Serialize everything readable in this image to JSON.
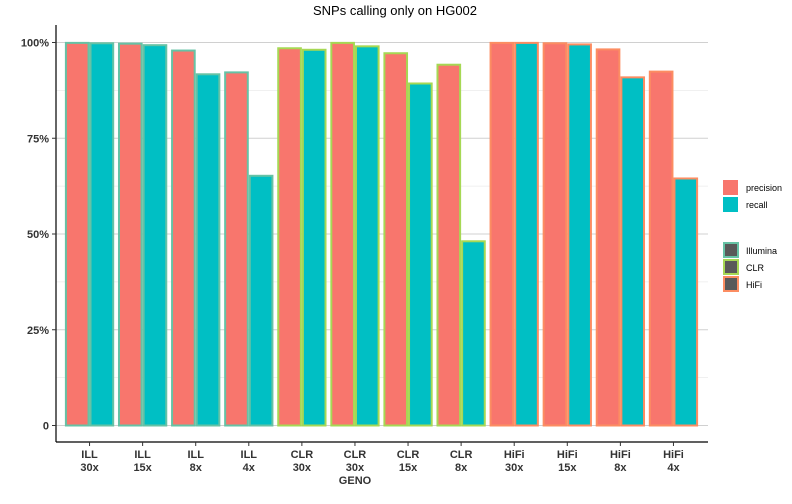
{
  "chart_data": {
    "type": "bar",
    "title": "SNPs calling only on HG002",
    "xlabel": "GENO",
    "ylabel": "",
    "ylim": [
      0,
      1
    ],
    "yticks": [
      0,
      0.25,
      0.5,
      0.75,
      1.0
    ],
    "ytick_labels": [
      "0",
      "25%",
      "50%",
      "75%",
      "100%"
    ],
    "grid": true,
    "legend_position": "right",
    "categories": [
      {
        "line1": "ILL",
        "line2": "30x",
        "platform": "Illumina"
      },
      {
        "line1": "ILL",
        "line2": "15x",
        "platform": "Illumina"
      },
      {
        "line1": "ILL",
        "line2": "8x",
        "platform": "Illumina"
      },
      {
        "line1": "ILL",
        "line2": "4x",
        "platform": "Illumina"
      },
      {
        "line1": "CLR",
        "line2": "30x",
        "platform": "CLR"
      },
      {
        "line1": "CLR",
        "line2": "30x",
        "platform": "CLR"
      },
      {
        "line1": "CLR",
        "line2": "15x",
        "platform": "CLR"
      },
      {
        "line1": "CLR",
        "line2": "8x",
        "platform": "CLR"
      },
      {
        "line1": "HiFi",
        "line2": "30x",
        "platform": "HiFi"
      },
      {
        "line1": "HiFi",
        "line2": "15x",
        "platform": "HiFi"
      },
      {
        "line1": "HiFi",
        "line2": "8x",
        "platform": "HiFi"
      },
      {
        "line1": "HiFi",
        "line2": "4x",
        "platform": "HiFi"
      }
    ],
    "series": [
      {
        "name": "precision",
        "color": "#F8766D",
        "values": [
          0.999,
          0.997,
          0.979,
          0.922,
          0.985,
          0.999,
          0.972,
          0.942,
          0.999,
          0.998,
          0.982,
          0.924
        ]
      },
      {
        "name": "recall",
        "color": "#00BFC4",
        "values": [
          0.998,
          0.993,
          0.917,
          0.652,
          0.981,
          0.99,
          0.893,
          0.481,
          0.999,
          0.995,
          0.909,
          0.645
        ]
      }
    ],
    "legend_fill": [
      {
        "label": "precision",
        "color": "#F8766D"
      },
      {
        "label": "recall",
        "color": "#00BFC4"
      }
    ],
    "legend_outline": [
      {
        "label": "Illumina",
        "color": "#66C2A5"
      },
      {
        "label": "CLR",
        "color": "#A6D854"
      },
      {
        "label": "HiFi",
        "color": "#FC8D62"
      }
    ]
  }
}
